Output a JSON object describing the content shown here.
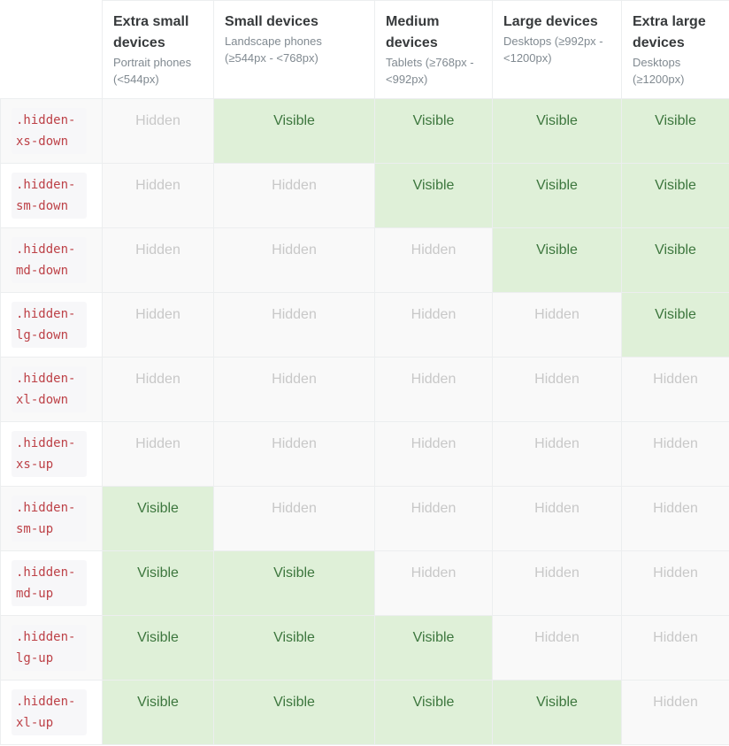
{
  "columns": [
    {
      "title": "",
      "subtitle": ""
    },
    {
      "title": "Extra small devices",
      "subtitle": "Portrait phones (<544px)"
    },
    {
      "title": "Small devices",
      "subtitle": "Landscape phones (≥544px - <768px)"
    },
    {
      "title": "Medium devices",
      "subtitle": "Tablets (≥768px - <992px)"
    },
    {
      "title": "Large devices",
      "subtitle": "Desktops (≥992px - <1200px)"
    },
    {
      "title": "Extra large devices",
      "subtitle": "Desktops (≥1200px)"
    }
  ],
  "rows": [
    {
      "class_name": ".hidden-xs-down",
      "cells": [
        "Hidden",
        "Visible",
        "Visible",
        "Visible",
        "Visible"
      ]
    },
    {
      "class_name": ".hidden-sm-down",
      "cells": [
        "Hidden",
        "Hidden",
        "Visible",
        "Visible",
        "Visible"
      ]
    },
    {
      "class_name": ".hidden-md-down",
      "cells": [
        "Hidden",
        "Hidden",
        "Hidden",
        "Visible",
        "Visible"
      ]
    },
    {
      "class_name": ".hidden-lg-down",
      "cells": [
        "Hidden",
        "Hidden",
        "Hidden",
        "Hidden",
        "Visible"
      ]
    },
    {
      "class_name": ".hidden-xl-down",
      "cells": [
        "Hidden",
        "Hidden",
        "Hidden",
        "Hidden",
        "Hidden"
      ]
    },
    {
      "class_name": ".hidden-xs-up",
      "cells": [
        "Hidden",
        "Hidden",
        "Hidden",
        "Hidden",
        "Hidden"
      ]
    },
    {
      "class_name": ".hidden-sm-up",
      "cells": [
        "Visible",
        "Hidden",
        "Hidden",
        "Hidden",
        "Hidden"
      ]
    },
    {
      "class_name": ".hidden-md-up",
      "cells": [
        "Visible",
        "Visible",
        "Hidden",
        "Hidden",
        "Hidden"
      ]
    },
    {
      "class_name": ".hidden-lg-up",
      "cells": [
        "Visible",
        "Visible",
        "Visible",
        "Hidden",
        "Hidden"
      ]
    },
    {
      "class_name": ".hidden-xl-up",
      "cells": [
        "Visible",
        "Visible",
        "Visible",
        "Visible",
        "Hidden"
      ]
    }
  ],
  "colors": {
    "visible_bg": "#dff0d8",
    "visible_text": "#3c763d",
    "hidden_bg": "#f9f9f9",
    "hidden_text": "#c8c8c8",
    "code_text": "#bd4147",
    "code_bg": "#f7f7f9",
    "border": "#eceeef"
  }
}
